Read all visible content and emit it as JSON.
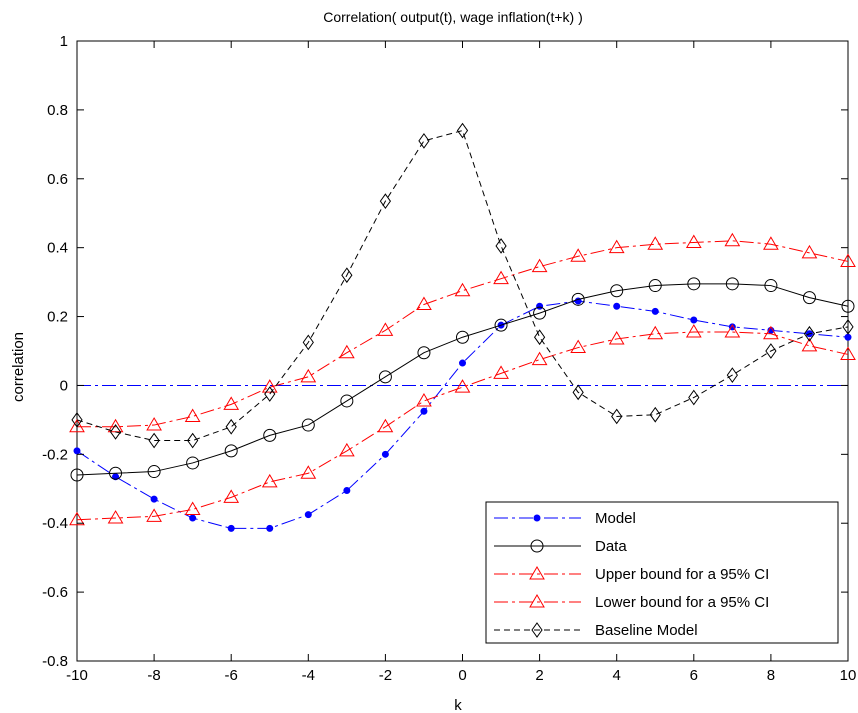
{
  "chart_data": {
    "type": "line",
    "title": "Correlation( output(t), wage inflation(t+k) )",
    "xlabel": "k",
    "ylabel": "correlation",
    "xlim": [
      -10,
      10
    ],
    "ylim": [
      -0.8,
      1
    ],
    "xticks": [
      "-10",
      "-8",
      "-6",
      "-4",
      "-2",
      "0",
      "2",
      "4",
      "6",
      "8",
      "10"
    ],
    "yticks": [
      "-0.8",
      "-0.6",
      "-0.4",
      "-0.2",
      "0",
      "0.2",
      "0.4",
      "0.6",
      "0.8",
      "1"
    ],
    "grid": false,
    "legend_position": "bottom-right",
    "x": [
      -10,
      -9,
      -8,
      -7,
      -6,
      -5,
      -4,
      -3,
      -2,
      -1,
      0,
      1,
      2,
      3,
      4,
      5,
      6,
      7,
      8,
      9,
      10
    ],
    "zero_line": {
      "y": 0,
      "color": "#0000ff",
      "style": "dash-dot"
    },
    "series": [
      {
        "name": "Model",
        "color": "#0000ff",
        "line_style": "dash-dot",
        "marker": "filled-dot",
        "values": [
          -0.19,
          -0.265,
          -0.33,
          -0.385,
          -0.415,
          -0.415,
          -0.375,
          -0.305,
          -0.2,
          -0.075,
          0.065,
          0.175,
          0.23,
          0.245,
          0.23,
          0.215,
          0.19,
          0.17,
          0.16,
          0.15,
          0.14
        ]
      },
      {
        "name": "Data",
        "color": "#000000",
        "line_style": "solid",
        "marker": "circle",
        "values": [
          -0.26,
          -0.255,
          -0.25,
          -0.225,
          -0.19,
          -0.145,
          -0.115,
          -0.045,
          0.025,
          0.095,
          0.14,
          0.175,
          0.21,
          0.25,
          0.275,
          0.29,
          0.295,
          0.295,
          0.29,
          0.255,
          0.23
        ]
      },
      {
        "name": "Upper bound for a 95% CI",
        "color": "#ff0000",
        "line_style": "dash-dot",
        "marker": "triangle",
        "values": [
          -0.12,
          -0.12,
          -0.115,
          -0.09,
          -0.055,
          -0.005,
          0.025,
          0.095,
          0.16,
          0.235,
          0.275,
          0.31,
          0.345,
          0.375,
          0.4,
          0.41,
          0.415,
          0.42,
          0.41,
          0.385,
          0.36
        ]
      },
      {
        "name": "Lower bound for a 95% CI",
        "color": "#ff0000",
        "line_style": "dash-dot",
        "marker": "triangle",
        "values": [
          -0.39,
          -0.385,
          -0.38,
          -0.36,
          -0.325,
          -0.28,
          -0.255,
          -0.19,
          -0.12,
          -0.045,
          -0.005,
          0.035,
          0.075,
          0.11,
          0.135,
          0.15,
          0.155,
          0.155,
          0.15,
          0.115,
          0.09
        ]
      },
      {
        "name": "Baseline Model",
        "color": "#000000",
        "line_style": "dashed",
        "marker": "diamond",
        "values": [
          -0.1,
          -0.135,
          -0.16,
          -0.16,
          -0.12,
          -0.025,
          0.125,
          0.32,
          0.535,
          0.71,
          0.74,
          0.405,
          0.14,
          -0.02,
          -0.09,
          -0.085,
          -0.035,
          0.03,
          0.1,
          0.15,
          0.17
        ]
      }
    ]
  }
}
